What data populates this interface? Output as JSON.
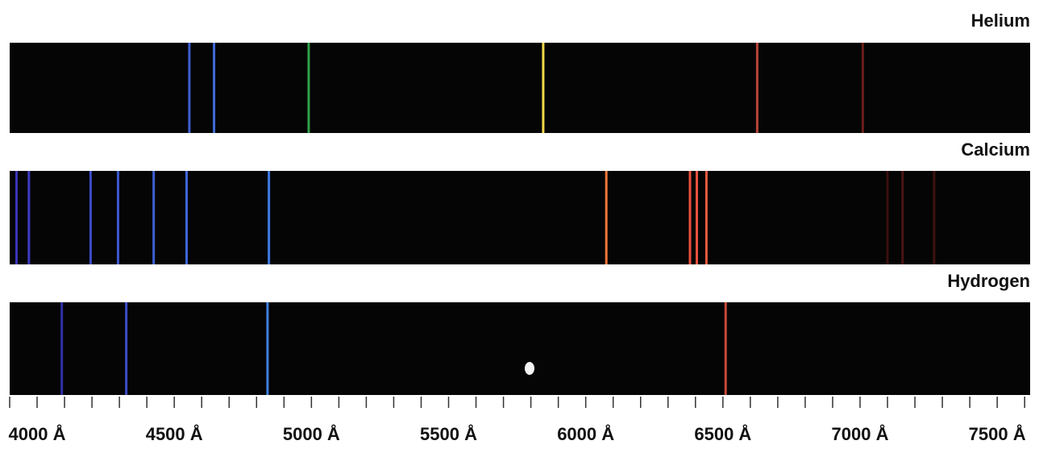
{
  "chart_data": {
    "type": "spectrum",
    "xlim": [
      3900,
      7620
    ],
    "xticks": [
      {
        "value": 4000,
        "label": "4000 Å"
      },
      {
        "value": 4500,
        "label": "4500 Å"
      },
      {
        "value": 5000,
        "label": "5000 Å"
      },
      {
        "value": 5500,
        "label": "5500 Å"
      },
      {
        "value": 6000,
        "label": "6000 Å"
      },
      {
        "value": 6500,
        "label": "6500 Å"
      },
      {
        "value": 7000,
        "label": "7000 Å"
      },
      {
        "value": 7500,
        "label": "7500 Å"
      }
    ],
    "xminorticks": [
      3900,
      4100,
      4200,
      4300,
      4400,
      4600,
      4700,
      4800,
      4900,
      5100,
      5200,
      5300,
      5400,
      5600,
      5700,
      5800,
      5900,
      6100,
      6200,
      6300,
      6400,
      6600,
      6700,
      6800,
      6900,
      7100,
      7200,
      7300,
      7400,
      7600
    ],
    "series": [
      {
        "name": "Helium",
        "values": [
          4555,
          4645,
          4990,
          5845,
          6625,
          7010
        ],
        "colors": [
          "#3d5fd0",
          "#3f6ad8",
          "#2fa04a",
          "#f2d84a",
          "#b8453a",
          "#6a1e1a"
        ]
      },
      {
        "name": "Calcium",
        "values": [
          3925,
          3970,
          4195,
          4295,
          4425,
          4545,
          4845,
          6075,
          6380,
          6405,
          6440,
          7100,
          7155,
          7270
        ],
        "colors": [
          "#3a35b8",
          "#3b3cc0",
          "#3c4dc8",
          "#3d58d0",
          "#3e60d4",
          "#3f66d8",
          "#3f78e0",
          "#f0763a",
          "#e8503e",
          "#e8503e",
          "#e85a40",
          "#3a0f0e",
          "#4a1512",
          "#3f1210"
        ]
      },
      {
        "name": "Hydrogen",
        "values": [
          4090,
          4325,
          4840,
          6510
        ],
        "colors": [
          "#2e2fa8",
          "#3d4ec8",
          "#3f80e0",
          "#c8473a"
        ]
      }
    ]
  }
}
